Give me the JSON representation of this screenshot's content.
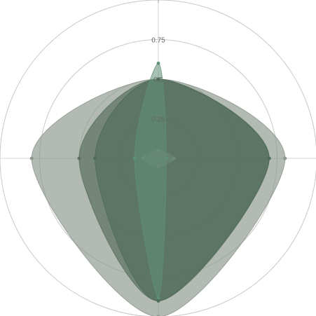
{
  "chart_data": {
    "type": "radar",
    "title": "",
    "axes": [
      "",
      "",
      "",
      ""
    ],
    "radial_range": [
      0,
      1
    ],
    "radial_ticks": [
      {
        "value": 0.25,
        "label": "0.25"
      },
      {
        "value": 0.5,
        "label": "0.5"
      },
      {
        "value": 0.75,
        "label": "0.75"
      },
      {
        "value": 1.0,
        "label": ""
      }
    ],
    "grid": true,
    "legend": "none",
    "series": [
      {
        "values": [
          0.5,
          0.8,
          1.0,
          0.8
        ],
        "color": "#8a958a",
        "opacity": 0.65
      },
      {
        "values": [
          0.5,
          0.7,
          0.9,
          0.5
        ],
        "color": "#58705f",
        "opacity": 0.7
      },
      {
        "values": [
          0.5,
          0.7,
          0.9,
          0.4
        ],
        "color": "#4f6a59",
        "opacity": 0.6
      },
      {
        "values": [
          0.6,
          0.05,
          0.88,
          0.15
        ],
        "color": "#5e8f78",
        "opacity": 0.55
      },
      {
        "values": [
          0.05,
          0.1,
          0.05,
          0.1
        ],
        "color": "#6a8a78",
        "opacity": 0.6
      }
    ]
  }
}
